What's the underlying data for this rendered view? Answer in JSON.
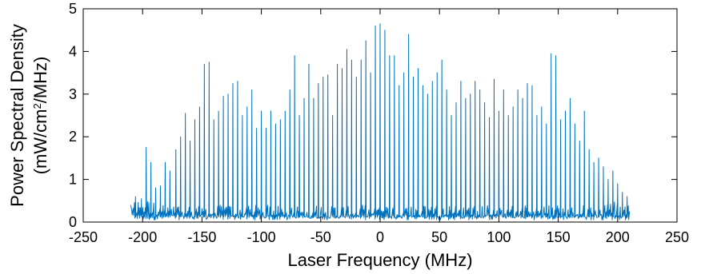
{
  "chart_data": {
    "type": "line",
    "title": "",
    "xlabel": "Laser Frequency (MHz)",
    "ylabel_line1": "Power Spectral Density",
    "ylabel_line2_prefix": "(mW/cm",
    "ylabel_line2_sup": "2",
    "ylabel_line2_suffix": "/MHz)",
    "xlim": [
      -250,
      250
    ],
    "ylim": [
      0,
      5
    ],
    "xticks": [
      -250,
      -200,
      -150,
      -100,
      -50,
      0,
      50,
      100,
      150,
      200,
      250
    ],
    "yticks": [
      0,
      1,
      2,
      3,
      4,
      5
    ],
    "grid": false,
    "legend": "none",
    "line_color": "#0072BD",
    "x_range": [
      -210,
      210
    ],
    "peak_spacing": 4.5,
    "peaks": [
      {
        "x": -206,
        "y": 0.6
      },
      {
        "x": -201,
        "y": 0.55
      },
      {
        "x": -197,
        "y": 1.75
      },
      {
        "x": -193,
        "y": 1.4
      },
      {
        "x": -189,
        "y": 0.8
      },
      {
        "x": -185,
        "y": 0.85
      },
      {
        "x": -181,
        "y": 1.4
      },
      {
        "x": -177,
        "y": 1.2
      },
      {
        "x": -172,
        "y": 1.7
      },
      {
        "x": -168,
        "y": 2.0
      },
      {
        "x": -164,
        "y": 2.55
      },
      {
        "x": -160,
        "y": 1.9
      },
      {
        "x": -156,
        "y": 2.4
      },
      {
        "x": -152,
        "y": 2.7
      },
      {
        "x": -148,
        "y": 3.7
      },
      {
        "x": -144,
        "y": 3.75
      },
      {
        "x": -140,
        "y": 2.4
      },
      {
        "x": -136,
        "y": 2.6
      },
      {
        "x": -132,
        "y": 2.95
      },
      {
        "x": -128,
        "y": 3.0
      },
      {
        "x": -124,
        "y": 3.25
      },
      {
        "x": -120,
        "y": 3.3
      },
      {
        "x": -116,
        "y": 2.5
      },
      {
        "x": -112,
        "y": 2.7
      },
      {
        "x": -108,
        "y": 3.1
      },
      {
        "x": -104,
        "y": 2.2
      },
      {
        "x": -100,
        "y": 2.6
      },
      {
        "x": -96,
        "y": 2.2
      },
      {
        "x": -92,
        "y": 2.6
      },
      {
        "x": -88,
        "y": 2.3
      },
      {
        "x": -84,
        "y": 2.4
      },
      {
        "x": -80,
        "y": 2.6
      },
      {
        "x": -76,
        "y": 3.1
      },
      {
        "x": -72,
        "y": 3.9
      },
      {
        "x": -68,
        "y": 2.5
      },
      {
        "x": -64,
        "y": 2.9
      },
      {
        "x": -60,
        "y": 3.7
      },
      {
        "x": -56,
        "y": 2.9
      },
      {
        "x": -52,
        "y": 3.25
      },
      {
        "x": -48,
        "y": 3.4
      },
      {
        "x": -44,
        "y": 3.45
      },
      {
        "x": -40,
        "y": 2.5
      },
      {
        "x": -36,
        "y": 3.7
      },
      {
        "x": -32,
        "y": 3.6
      },
      {
        "x": -28,
        "y": 4.05
      },
      {
        "x": -24,
        "y": 3.8
      },
      {
        "x": -20,
        "y": 3.4
      },
      {
        "x": -16,
        "y": 3.8
      },
      {
        "x": -12,
        "y": 4.25
      },
      {
        "x": -8,
        "y": 3.5
      },
      {
        "x": -4,
        "y": 4.6
      },
      {
        "x": 0,
        "y": 4.65
      },
      {
        "x": 4,
        "y": 4.5
      },
      {
        "x": 8,
        "y": 3.9
      },
      {
        "x": 12,
        "y": 3.9
      },
      {
        "x": 16,
        "y": 3.2
      },
      {
        "x": 20,
        "y": 3.5
      },
      {
        "x": 24,
        "y": 4.4
      },
      {
        "x": 28,
        "y": 3.4
      },
      {
        "x": 32,
        "y": 3.6
      },
      {
        "x": 36,
        "y": 3.2
      },
      {
        "x": 40,
        "y": 3.0
      },
      {
        "x": 44,
        "y": 3.3
      },
      {
        "x": 48,
        "y": 3.5
      },
      {
        "x": 52,
        "y": 3.8
      },
      {
        "x": 56,
        "y": 3.1
      },
      {
        "x": 60,
        "y": 2.5
      },
      {
        "x": 64,
        "y": 2.8
      },
      {
        "x": 68,
        "y": 3.3
      },
      {
        "x": 72,
        "y": 2.9
      },
      {
        "x": 76,
        "y": 3.0
      },
      {
        "x": 80,
        "y": 3.3
      },
      {
        "x": 84,
        "y": 3.1
      },
      {
        "x": 88,
        "y": 2.8
      },
      {
        "x": 92,
        "y": 2.45
      },
      {
        "x": 96,
        "y": 3.35
      },
      {
        "x": 100,
        "y": 2.6
      },
      {
        "x": 104,
        "y": 3.1
      },
      {
        "x": 108,
        "y": 2.5
      },
      {
        "x": 112,
        "y": 2.7
      },
      {
        "x": 116,
        "y": 3.1
      },
      {
        "x": 120,
        "y": 2.9
      },
      {
        "x": 124,
        "y": 3.25
      },
      {
        "x": 128,
        "y": 3.2
      },
      {
        "x": 132,
        "y": 2.5
      },
      {
        "x": 136,
        "y": 2.7
      },
      {
        "x": 140,
        "y": 2.3
      },
      {
        "x": 144,
        "y": 3.95
      },
      {
        "x": 148,
        "y": 3.9
      },
      {
        "x": 152,
        "y": 2.4
      },
      {
        "x": 156,
        "y": 2.6
      },
      {
        "x": 160,
        "y": 2.9
      },
      {
        "x": 164,
        "y": 2.3
      },
      {
        "x": 168,
        "y": 1.9
      },
      {
        "x": 172,
        "y": 2.6
      },
      {
        "x": 176,
        "y": 1.7
      },
      {
        "x": 180,
        "y": 1.4
      },
      {
        "x": 184,
        "y": 1.5
      },
      {
        "x": 188,
        "y": 1.3
      },
      {
        "x": 192,
        "y": 1.0
      },
      {
        "x": 196,
        "y": 1.2
      },
      {
        "x": 200,
        "y": 0.9
      },
      {
        "x": 204,
        "y": 0.7
      },
      {
        "x": 208,
        "y": 0.6
      }
    ]
  }
}
